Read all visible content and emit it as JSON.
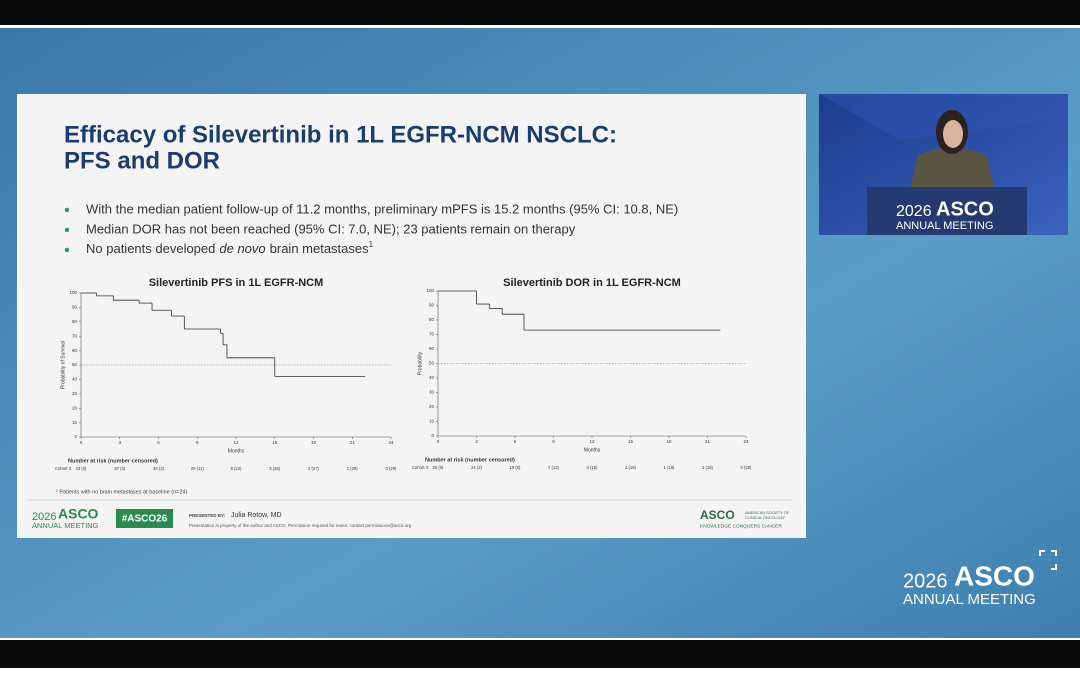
{
  "slide": {
    "title_lines": [
      "Efficacy of Silevertinib in 1L EGFR-NCM NSCLC:",
      "PFS and DOR"
    ],
    "bullets": [
      "With the median patient follow-up of 11.2 months, preliminary mPFS is 15.2 months (95% CI: 10.8, NE)",
      "Median DOR has not been reached (95% CI: 7.0, NE); 23 patients remain on therapy",
      {
        "text": "No patients developed",
        "italic": "de novo",
        "rest": "brain metastases",
        "sup": "1"
      }
    ],
    "footnote": "¹ Patients with no brain metastases at baseline (n=24)",
    "footer": {
      "logo_year": "2026",
      "logo_name": "ASCO",
      "logo_sub": "ANNUAL MEETING",
      "hashtag": "#ASCO26",
      "presented_by": "PRESENTED BY:",
      "presenter": "Julia Rotow, MD",
      "disclaimer": "Presentation is property of the author and ASCO. Permission required for reuse; contact permissions@asco.org",
      "org": "ASCO",
      "org_full_1": "AMERICAN SOCIETY OF",
      "org_full_2": "CLINICAL ONCOLOGY",
      "org_tagline": "KNOWLEDGE CONQUERS CANCER"
    }
  },
  "video": {
    "podium_year": "2026",
    "podium_name": "ASCO",
    "podium_sub": "ANNUAL MEETING"
  },
  "overlay_logo": {
    "year": "2026",
    "name": "ASCO",
    "sub": "ANNUAL MEETING"
  },
  "chart_data": [
    {
      "type": "line",
      "step": true,
      "title": "Silevertinib PFS in 1L EGFR-NCM",
      "x_label": "Months",
      "y_label": "Probability of Survival",
      "xlim": [
        0,
        24
      ],
      "ylim": [
        0,
        100
      ],
      "xticks": [
        0,
        3,
        6,
        9,
        12,
        15,
        18,
        21,
        24
      ],
      "yticks": [
        0,
        10,
        20,
        30,
        40,
        50,
        60,
        70,
        80,
        90,
        100
      ],
      "reference_line": 50,
      "series": [
        {
          "color": "#333333",
          "x": [
            0,
            1.2,
            2.5,
            4.5,
            5.5,
            7,
            8,
            10.8,
            11,
            11.3,
            15,
            22
          ],
          "values": [
            100,
            98,
            95,
            93,
            88,
            84,
            75,
            72,
            64,
            55,
            42,
            42
          ]
        }
      ],
      "risk_table": {
        "title": "Number at risk (number censored)",
        "label": "Cohort 3",
        "values": [
          "43 (0)",
          "37 (3)",
          "34 (3)",
          "20 (11)",
          "8 (22)",
          "3 (26)",
          "2 (27)",
          "1 (28)",
          "0 (29)"
        ]
      }
    },
    {
      "type": "line",
      "step": true,
      "title": "Silevertinib DOR in 1L EGFR-NCM",
      "x_label": "Months",
      "y_label": "Probability",
      "xlim": [
        0,
        24
      ],
      "ylim": [
        0,
        100
      ],
      "xticks": [
        0,
        3,
        6,
        9,
        12,
        15,
        18,
        21,
        24
      ],
      "yticks": [
        0,
        10,
        20,
        30,
        40,
        50,
        60,
        70,
        80,
        90,
        100
      ],
      "reference_line": 50,
      "series": [
        {
          "color": "#333333",
          "x": [
            0,
            3,
            4,
            5,
            6.7,
            22
          ],
          "values": [
            100,
            91,
            88,
            84,
            73,
            73
          ]
        }
      ],
      "risk_table": {
        "title": "Number at risk (number censored)",
        "label": "Cohort 3",
        "values": [
          "26 (0)",
          "24 (2)",
          "18 (6)",
          "7 (13)",
          "4 (16)",
          "2 (18)",
          "1 (19)",
          "1 (19)",
          "0 (20)"
        ]
      }
    }
  ]
}
